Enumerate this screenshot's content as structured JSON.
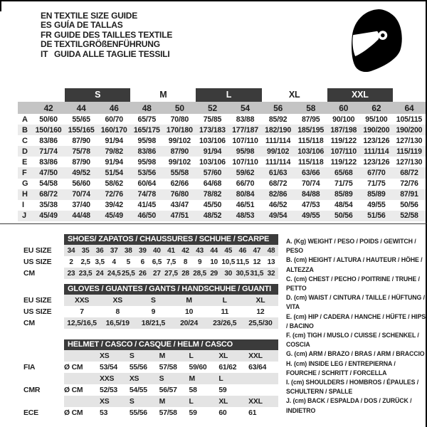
{
  "colors": {
    "accent_dark": "#3b3b3b",
    "size_header_gray": "#c4c4c4",
    "alt_row_gray": "#ebebeb",
    "band_gray": "#e4e4e4",
    "icon_black": "#000000"
  },
  "header": {
    "languages": [
      {
        "code": "EN",
        "text": "TEXTILE SIZE GUIDE"
      },
      {
        "code": "ES",
        "text": "GUÍA DE TALLAS"
      },
      {
        "code": "FR",
        "text": "GUIDE DES TAILLES TEXTILE"
      },
      {
        "code": "DE",
        "text": "TEXTILGRÖßENFÜHRUNG"
      },
      {
        "code": "IT",
        "text": "GUIDA ALLE TAGLIE TESSILI"
      }
    ],
    "icon": "helmet-icon"
  },
  "main_table": {
    "size_groups": [
      {
        "label": "S",
        "dark": true
      },
      {
        "label": "M",
        "dark": false
      },
      {
        "label": "L",
        "dark": true
      },
      {
        "label": "XL",
        "dark": false
      },
      {
        "label": "XXL",
        "dark": true
      }
    ],
    "sizes": [
      "42",
      "44",
      "46",
      "48",
      "50",
      "52",
      "54",
      "56",
      "58",
      "60",
      "62",
      "64"
    ],
    "rows": [
      {
        "label": "A",
        "values": [
          "50/60",
          "55/65",
          "60/70",
          "65/75",
          "70/80",
          "75/85",
          "83/88",
          "85/92",
          "87/95",
          "90/100",
          "95/100",
          "105/115"
        ]
      },
      {
        "label": "B",
        "values": [
          "150/160",
          "155/165",
          "160/170",
          "165/175",
          "170/180",
          "173/183",
          "177/187",
          "182/190",
          "185/195",
          "187/198",
          "190/200",
          "190/200"
        ]
      },
      {
        "label": "C",
        "values": [
          "83/86",
          "87/90",
          "91/94",
          "95/98",
          "99/102",
          "103/106",
          "107/110",
          "111/114",
          "115/118",
          "119/122",
          "123/126",
          "127/130"
        ]
      },
      {
        "label": "D",
        "values": [
          "71/74",
          "75/78",
          "79/82",
          "83/86",
          "87/90",
          "91/94",
          "95/98",
          "99/102",
          "103/106",
          "107/110",
          "111/114",
          "115/119"
        ]
      },
      {
        "label": "E",
        "values": [
          "83/86",
          "87/90",
          "91/94",
          "95/98",
          "99/102",
          "103/106",
          "107/110",
          "111/114",
          "115/118",
          "119/122",
          "123/126",
          "127/130"
        ]
      },
      {
        "label": "F",
        "values": [
          "47/50",
          "49/52",
          "51/54",
          "53/56",
          "55/58",
          "57/60",
          "59/62",
          "61/63",
          "63/66",
          "65/68",
          "67/70",
          "68/72"
        ]
      },
      {
        "label": "G",
        "values": [
          "54/58",
          "56/60",
          "58/62",
          "60/64",
          "62/66",
          "64/68",
          "66/70",
          "68/72",
          "70/74",
          "71/75",
          "71/75",
          "72/76"
        ]
      },
      {
        "label": "H",
        "values": [
          "68/72",
          "70/74",
          "72/76",
          "74/78",
          "76/80",
          "78/82",
          "80/84",
          "82/86",
          "84/88",
          "85/89",
          "85/89",
          "87/91"
        ]
      },
      {
        "label": "I",
        "values": [
          "35/38",
          "37/40",
          "39/42",
          "41/45",
          "43/47",
          "45/50",
          "46/51",
          "46/52",
          "47/53",
          "48/54",
          "49/55",
          "50/56"
        ]
      },
      {
        "label": "J",
        "values": [
          "45/49",
          "44/48",
          "45/49",
          "46/50",
          "47/51",
          "48/52",
          "48/53",
          "49/54",
          "49/55",
          "50/56",
          "51/56",
          "52/58"
        ]
      }
    ]
  },
  "shoes": {
    "title": "SHOES/ ZAPATOS / CHAUSSURES / SCHUHE / SCARPE",
    "rows": [
      {
        "label": "EU SIZE",
        "shaded": true,
        "cells": [
          "34",
          "35",
          "36",
          "37",
          "38",
          "39",
          "40",
          "41",
          "42",
          "43",
          "44",
          "45",
          "46",
          "47",
          "48"
        ]
      },
      {
        "label": "US SIZE",
        "shaded": false,
        "cells": [
          "2",
          "2,5",
          "3,5",
          "4",
          "5",
          "6",
          "6,5",
          "7,5",
          "8",
          "9",
          "10",
          "10,5",
          "11,5",
          "12",
          "13"
        ]
      },
      {
        "label": "CM",
        "shaded": true,
        "cells": [
          "23",
          "23,5",
          "24",
          "24,5",
          "25,5",
          "26",
          "27",
          "27,5",
          "28",
          "28,5",
          "29",
          "30",
          "30,5",
          "31,5",
          "32"
        ]
      }
    ]
  },
  "gloves": {
    "title": "GLOVES / GUANTES / GANTS / HANDSCHUHE / GUANTI",
    "rows": [
      {
        "label": "EU SIZE",
        "shaded": true,
        "cells": [
          "XXS",
          "XS",
          "S",
          "M",
          "L",
          "XL"
        ]
      },
      {
        "label": "US SIZE",
        "shaded": false,
        "cells": [
          "7",
          "8",
          "9",
          "10",
          "11",
          "12"
        ]
      },
      {
        "label": "CM",
        "shaded": true,
        "cells": [
          "12,5/16,5",
          "16,5/19",
          "18/21,5",
          "20/24",
          "23/26,5",
          "25,5/30"
        ]
      }
    ]
  },
  "helmet": {
    "title": "HELMET / CASCO / CASQUE / HELM / CASCO",
    "rows": [
      {
        "label": "",
        "unit": "",
        "shaded": true,
        "cells": [
          "XS",
          "S",
          "M",
          "L",
          "XL",
          "XXL"
        ]
      },
      {
        "label": "FIA",
        "unit": "Ø CM",
        "shaded": false,
        "cells": [
          "53/54",
          "55/56",
          "57/58",
          "59/60",
          "61/62",
          "63/64"
        ]
      },
      {
        "label": "",
        "unit": "",
        "shaded": true,
        "cells": [
          "XXS",
          "XS",
          "S",
          "M",
          "L",
          ""
        ]
      },
      {
        "label": "CMR",
        "unit": "Ø CM",
        "shaded": false,
        "cells": [
          "52/53",
          "54/55",
          "56/57",
          "58",
          "59",
          ""
        ]
      },
      {
        "label": "",
        "unit": "",
        "shaded": true,
        "cells": [
          "XS",
          "S",
          "M",
          "L",
          "XL",
          "XXL"
        ]
      },
      {
        "label": "ECE",
        "unit": "Ø CM",
        "shaded": false,
        "cells": [
          "53",
          "55/56",
          "57/58",
          "59",
          "60",
          "61"
        ]
      }
    ]
  },
  "legend": {
    "items": [
      "A. (Kg) WEIGHT / PESO / POIDS / GEWITCH / PESO",
      "B. (cm) HEIGHT / ALTURA / HAUTEUR / HÖHE / ALTEZZA",
      "C. (cm) CHEST / PECHO / POITRINE / TRUHE / PETTO",
      "D. (cm) WAIST / CINTURA / TAILLE / HÜFTUNG / VITA",
      "E. (cm) HIP / CADERA / HANCHE / HÜFTE / HIPS /  BACINO",
      "F.  (cm) TIGH / MUSLO / CUISSE / SCHENKEL / COSCIA",
      "G. (cm) ARM  / BRAZO / BRAS / ARM / BRACCIO",
      "H. (cm) INSIDE LEG / ENTREPIERNA / FOURCHE / SCHRITT / FORCELLA",
      "I.  (cm) SHOULDERS / HOMBROS / ÉPAULES / SCHULTERN / SPALLE",
      "J.  (cm) BACK / ESPALDA / DOS / ZURÜCK / INDIETRO"
    ]
  }
}
